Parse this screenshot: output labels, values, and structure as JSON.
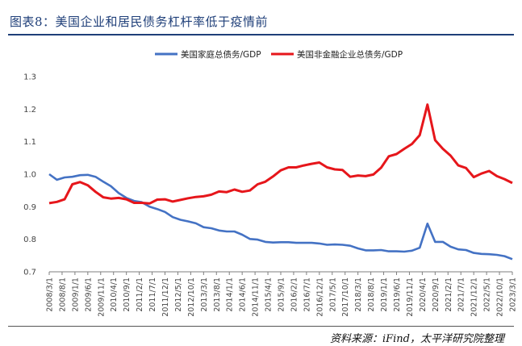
{
  "header": {
    "title": "图表8：美国企业和居民债务杠杆率低于疫情前"
  },
  "footer": {
    "source": "资料来源：iFind，太平洋研究院整理"
  },
  "chart_data": {
    "type": "line",
    "title": "图表8：美国企业和居民债务杠杆率低于疫情前",
    "xlabel": "",
    "ylabel": "",
    "ylim": [
      0.7,
      1.3
    ],
    "yticks": [
      "0.7",
      "0.8",
      "0.9",
      "1.0",
      "1.1",
      "1.2",
      "1.3"
    ],
    "grid": false,
    "legend": "top",
    "x_tick_labels": [
      "2008/3/1",
      "2008/8/1",
      "2009/1/1",
      "2009/6/1",
      "2009/11/1",
      "2010/4/1",
      "2010/9/1",
      "2011/2/1",
      "2011/7/1",
      "2011/12/1",
      "2012/5/1",
      "2012/10/1",
      "2013/3/1",
      "2013/8/1",
      "2014/1/1",
      "2014/6/1",
      "2014/11/1",
      "2015/4/1",
      "2015/9/1",
      "2016/2/1",
      "2016/7/1",
      "2016/12/1",
      "2017/5/1",
      "2017/10/1",
      "2018/3/1",
      "2018/8/1",
      "2019/1/1",
      "2019/6/1",
      "2019/11/1",
      "2020/4/1",
      "2020/9/1",
      "2021/2/1",
      "2021/7/1",
      "2021/12/1",
      "2022/5/1",
      "2022/10/1",
      "2023/3/1"
    ],
    "series": [
      {
        "name": "美国家庭总债务/GDP",
        "color": "#4472C4",
        "values": [
          1.0,
          0.983,
          0.99,
          0.992,
          0.997,
          0.998,
          0.992,
          0.977,
          0.963,
          0.942,
          0.927,
          0.918,
          0.914,
          0.9,
          0.893,
          0.884,
          0.868,
          0.86,
          0.855,
          0.849,
          0.837,
          0.834,
          0.827,
          0.824,
          0.824,
          0.814,
          0.801,
          0.799,
          0.792,
          0.79,
          0.791,
          0.791,
          0.789,
          0.789,
          0.789,
          0.787,
          0.783,
          0.784,
          0.783,
          0.78,
          0.772,
          0.766,
          0.766,
          0.767,
          0.763,
          0.763,
          0.762,
          0.765,
          0.774,
          0.848,
          0.792,
          0.792,
          0.777,
          0.769,
          0.767,
          0.758,
          0.755,
          0.754,
          0.752,
          0.748,
          0.739
        ]
      },
      {
        "name": "美国非金融企业总债务/GDP",
        "color": "#E6161B",
        "values": [
          0.911,
          0.915,
          0.923,
          0.969,
          0.976,
          0.966,
          0.946,
          0.929,
          0.925,
          0.927,
          0.923,
          0.912,
          0.912,
          0.91,
          0.922,
          0.923,
          0.916,
          0.921,
          0.926,
          0.93,
          0.932,
          0.937,
          0.947,
          0.945,
          0.953,
          0.946,
          0.95,
          0.969,
          0.977,
          0.993,
          1.012,
          1.021,
          1.021,
          1.027,
          1.032,
          1.036,
          1.021,
          1.015,
          1.013,
          0.992,
          0.996,
          0.994,
          0.999,
          1.02,
          1.055,
          1.062,
          1.078,
          1.093,
          1.12,
          1.214,
          1.105,
          1.078,
          1.057,
          1.027,
          1.019,
          0.991,
          1.002,
          1.01,
          0.994,
          0.985,
          0.973
        ]
      }
    ]
  }
}
